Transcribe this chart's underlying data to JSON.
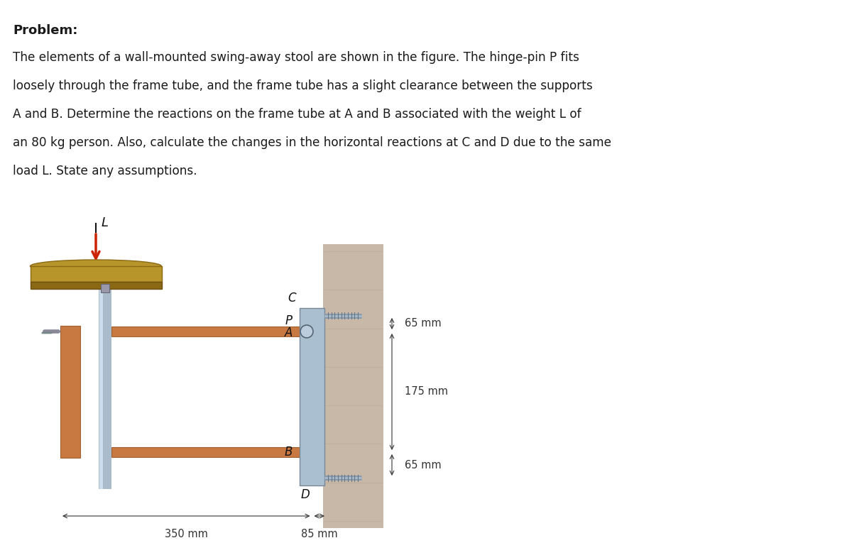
{
  "bg_color": "#ffffff",
  "text_color": "#1a1a1a",
  "problem_title": "Problem:",
  "problem_text_lines": [
    "The elements of a wall-mounted swing-away stool are shown in the figure. The hinge-pin P fits",
    "loosely through the frame tube, and the frame tube has a slight clearance between the supports",
    "A and B. Determine the reactions on the frame tube at A and B associated with the weight L of",
    "an 80 kg person. Also, calculate the changes in the horizontal reactions at C and D due to the same",
    "load L. State any assumptions."
  ],
  "dim_65mm_top": "65 mm",
  "dim_175mm": "175 mm",
  "dim_65mm_bot": "65 mm",
  "dim_350mm": "350 mm",
  "dim_85mm": "85 mm",
  "label_L": "L",
  "label_C": "C",
  "label_P": "P",
  "label_A": "A",
  "label_B": "B",
  "label_D": "D",
  "copper_color": "#c87941",
  "wall_color": "#c8b8a8",
  "bracket_color": "#aabfcf",
  "bolt_color": "#8899aa",
  "seat_top_color": "#b8952a",
  "seat_bot_color": "#8b6914",
  "stem_color": "#aabbcc",
  "arrow_color": "#cc2200"
}
